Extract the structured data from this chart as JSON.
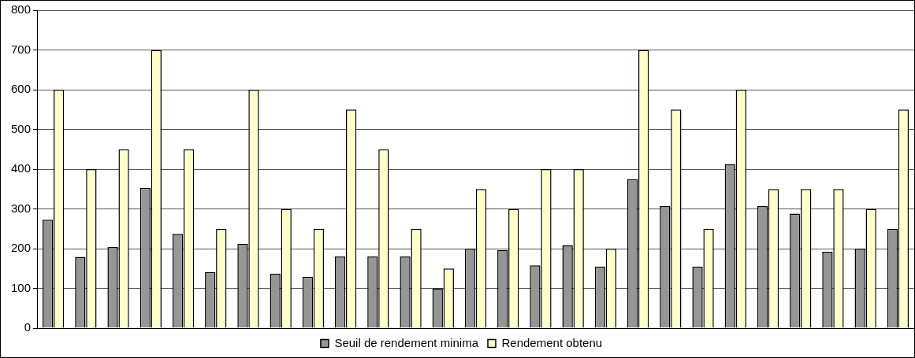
{
  "chart_data": {
    "type": "bar",
    "categories": [
      null,
      null,
      null,
      null,
      null,
      null,
      null,
      null,
      null,
      null,
      null,
      null,
      null,
      null,
      null,
      null,
      null,
      null,
      null,
      null,
      null,
      null,
      null,
      null,
      null,
      null,
      null
    ],
    "series": [
      {
        "name": "Seuil de rendement minima",
        "color": "#969696",
        "values": [
          273,
          179,
          204,
          353,
          237,
          141,
          212,
          137,
          129,
          180,
          180,
          180,
          100,
          200,
          196,
          158,
          209,
          155,
          375,
          307,
          155,
          413,
          307,
          288,
          192,
          200,
          250
        ]
      },
      {
        "name": "Rendement obtenu",
        "color": "#ffffcc",
        "values": [
          600,
          400,
          450,
          700,
          450,
          250,
          600,
          300,
          250,
          550,
          450,
          250,
          150,
          350,
          300,
          400,
          400,
          200,
          700,
          550,
          250,
          600,
          350,
          350,
          350,
          300,
          550
        ]
      }
    ],
    "ylim": [
      0,
      800
    ],
    "yticks": [
      0,
      100,
      200,
      300,
      400,
      500,
      600,
      700,
      800
    ],
    "grid": "y",
    "legend": "bottom"
  }
}
